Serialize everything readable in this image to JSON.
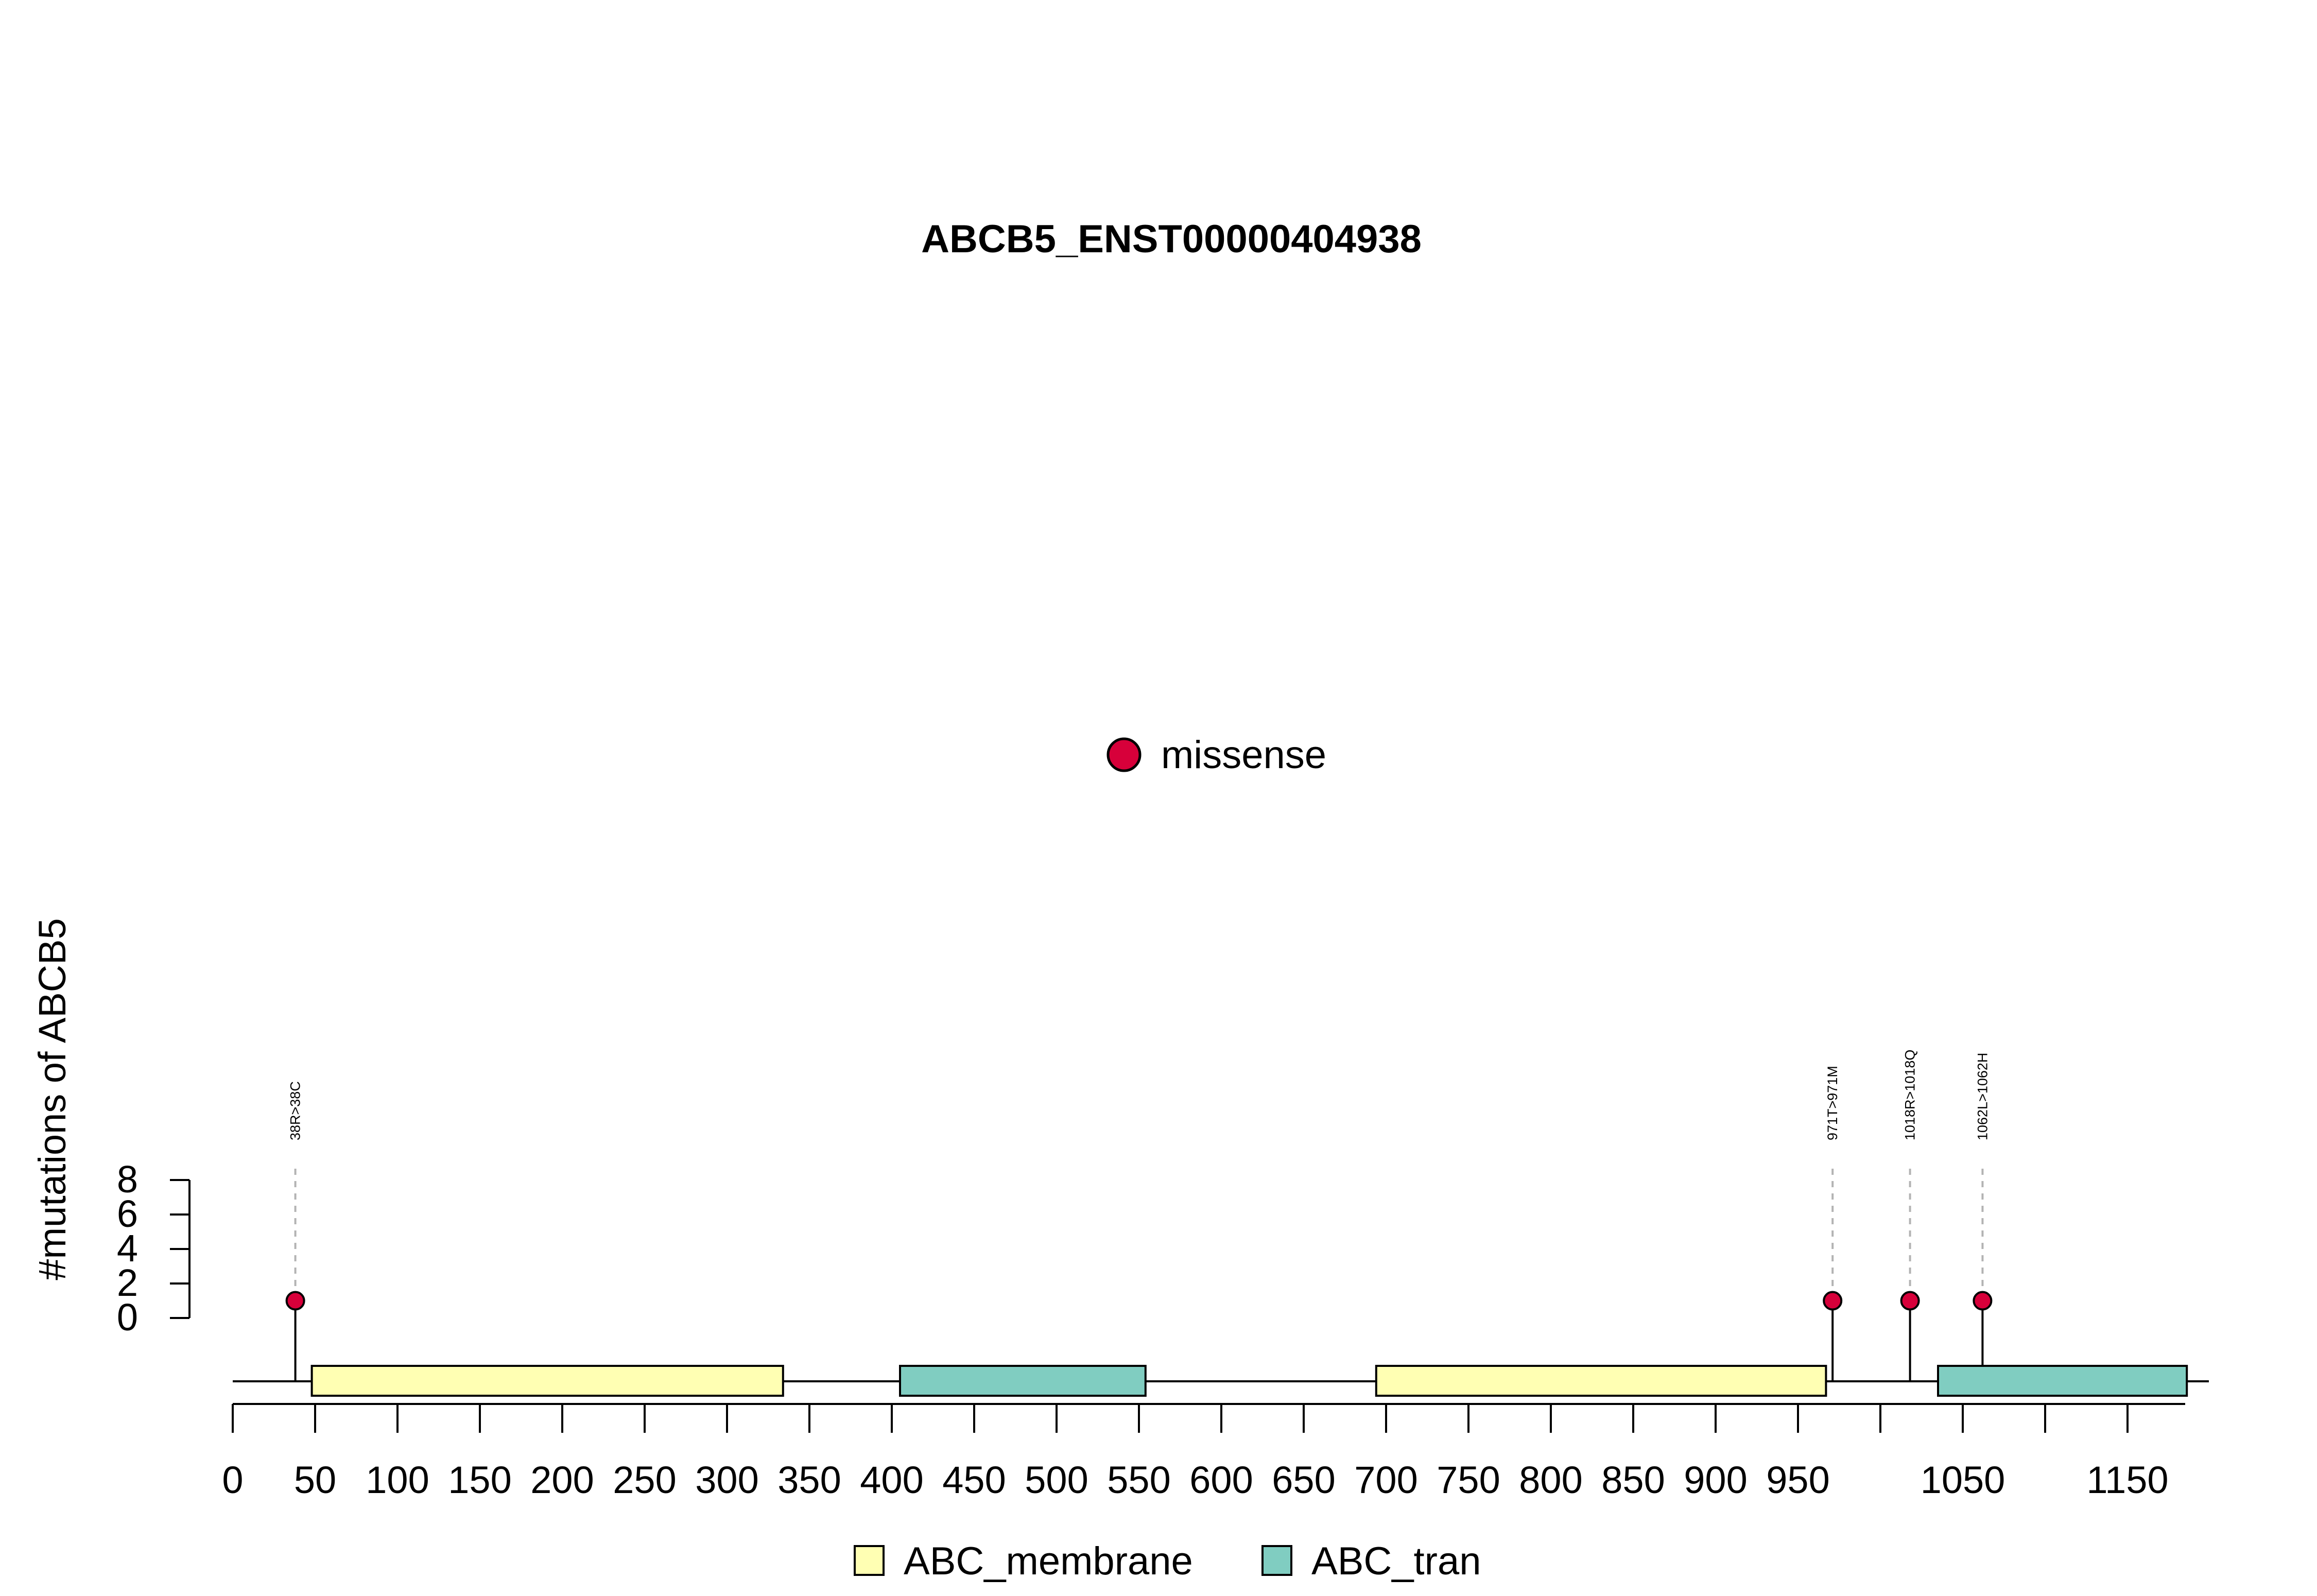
{
  "chart_data": {
    "type": "lollipop",
    "title": "ABCB5_ENST00000404938",
    "ylabel": "#mutations of ABCB5",
    "xlim": [
      0,
      1185
    ],
    "ylim": [
      0,
      8
    ],
    "x_ticks": [
      0,
      50,
      100,
      150,
      200,
      250,
      300,
      350,
      400,
      450,
      500,
      550,
      600,
      650,
      700,
      750,
      800,
      850,
      900,
      950,
      1000,
      1050,
      1100,
      1150
    ],
    "x_tick_labels": [
      "0",
      "50",
      "100",
      "150",
      "200",
      "250",
      "300",
      "350",
      "400",
      "450",
      "500",
      "550",
      "600",
      "650",
      "700",
      "750",
      "800",
      "850",
      "900",
      "950",
      "",
      "1050",
      "",
      "1150"
    ],
    "y_ticks": [
      0,
      2,
      4,
      6,
      8
    ],
    "y_tick_labels": [
      "0",
      "2",
      "4",
      "6",
      "8"
    ],
    "domains": [
      {
        "name": "ABC_membrane",
        "start": 48,
        "end": 334
      },
      {
        "name": "ABC_tran",
        "start": 405,
        "end": 554
      },
      {
        "name": "ABC_membrane",
        "start": 694,
        "end": 967
      },
      {
        "name": "ABC_tran",
        "start": 1035,
        "end": 1186
      }
    ],
    "mutations": [
      {
        "position": 38,
        "count": 1,
        "type": "missense",
        "label": "38R>38C"
      },
      {
        "position": 971,
        "count": 1,
        "type": "missense",
        "label": "971T>971M"
      },
      {
        "position": 1018,
        "count": 1,
        "type": "missense",
        "label": "1018R>1018Q"
      },
      {
        "position": 1062,
        "count": 1,
        "type": "missense",
        "label": "1062L>1062H"
      }
    ],
    "mutation_legend": [
      {
        "name": "missense",
        "color": "#d7003a"
      }
    ],
    "domain_legend": [
      {
        "name": "ABC_membrane",
        "color": "#ffffb3"
      },
      {
        "name": "ABC_tran",
        "color": "#80cdc1"
      }
    ],
    "colors": {
      "ABC_membrane": "#ffffb3",
      "ABC_tran": "#80cdc1",
      "missense": "#d7003a"
    }
  }
}
